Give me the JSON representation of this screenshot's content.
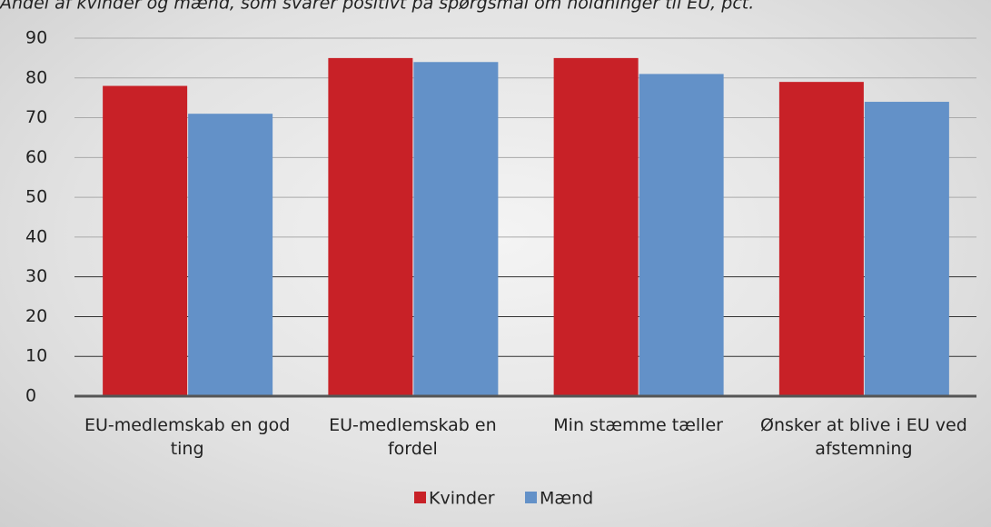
{
  "chart_data": {
    "type": "bar",
    "title": "Andel af kvinder og mænd, som svarer positivt på spørgsmål om holdninger til EU, pct.",
    "categories": [
      "EU-medlemskab en god ting",
      "EU-medlemskab en fordel",
      "Min stæmme tæller",
      "Ønsker at blive i EU ved afstemning"
    ],
    "series": [
      {
        "name": "Kvinder",
        "color": "#c82127",
        "values": [
          78,
          85,
          85,
          79
        ]
      },
      {
        "name": "Mænd",
        "color": "#6391c8",
        "values": [
          71,
          84,
          81,
          74
        ]
      }
    ],
    "ylim": [
      0,
      90
    ],
    "yticks": [
      0,
      10,
      20,
      30,
      40,
      50,
      60,
      70,
      80,
      90
    ],
    "grid": true,
    "legend": "bottom"
  }
}
